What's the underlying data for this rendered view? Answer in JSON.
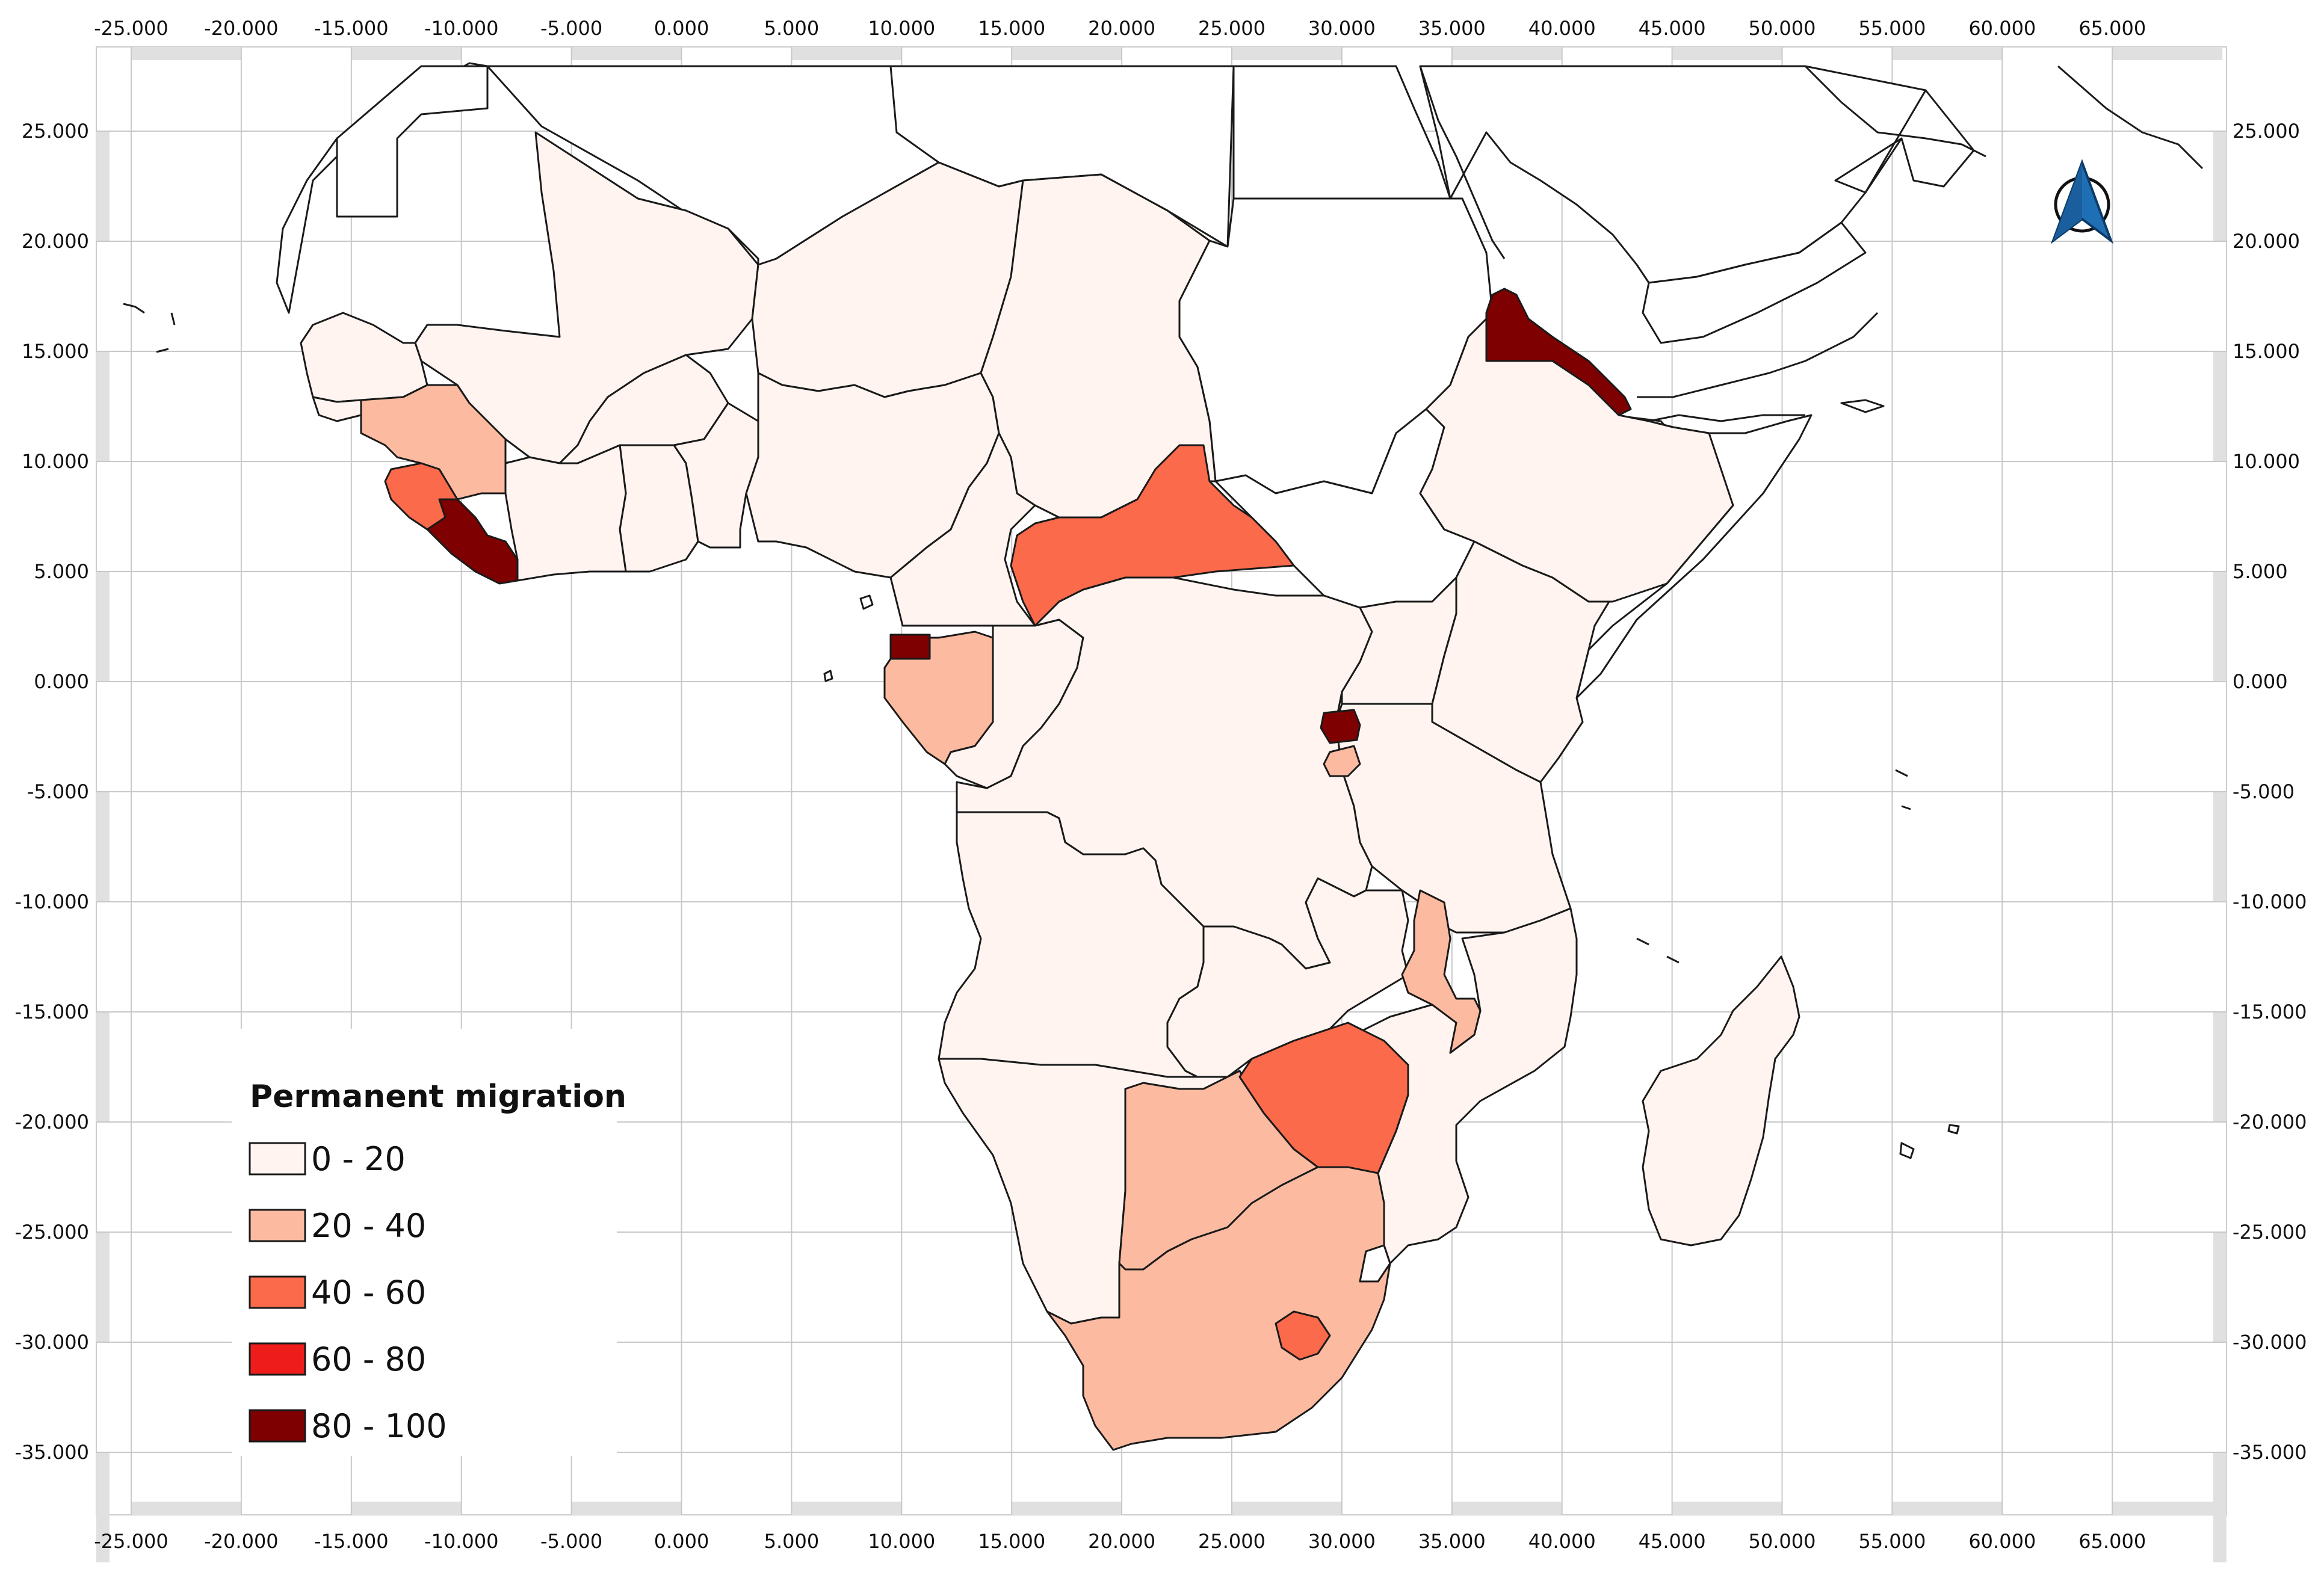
{
  "map": {
    "x_ticks": [
      "-25.000",
      "-20.000",
      "-15.000",
      "-10.000",
      "-5.000",
      "0.000",
      "5.000",
      "10.000",
      "15.000",
      "20.000",
      "25.000",
      "30.000",
      "35.000",
      "40.000",
      "45.000",
      "50.000",
      "55.000",
      "60.000",
      "65.000"
    ],
    "y_ticks": [
      "25.000",
      "20.000",
      "15.000",
      "10.000",
      "5.000",
      "0.000",
      "-5.000",
      "-10.000",
      "-15.000",
      "-20.000",
      "-25.000",
      "-30.000",
      "-35.000"
    ],
    "north_arrow_icon": "north-arrow-icon"
  },
  "legend": {
    "title": "Permanent migration",
    "classes": [
      {
        "label": "0 - 20",
        "color": "#fff4f0"
      },
      {
        "label": "20 - 40",
        "color": "#fcbba1"
      },
      {
        "label": "40 - 60",
        "color": "#fb6a4a"
      },
      {
        "label": "60 - 80",
        "color": "#ef1c1c"
      },
      {
        "label": "80 - 100",
        "color": "#7f0000"
      }
    ]
  },
  "colors": {
    "no_data": "#ffffff",
    "class_0_20": "#fff4f0",
    "class_20_40": "#fcbba1",
    "class_40_60": "#fb6a4a",
    "class_80_100": "#7f0000",
    "frame": "#e0e0e0",
    "north_arrow": "#1f6fb5"
  }
}
